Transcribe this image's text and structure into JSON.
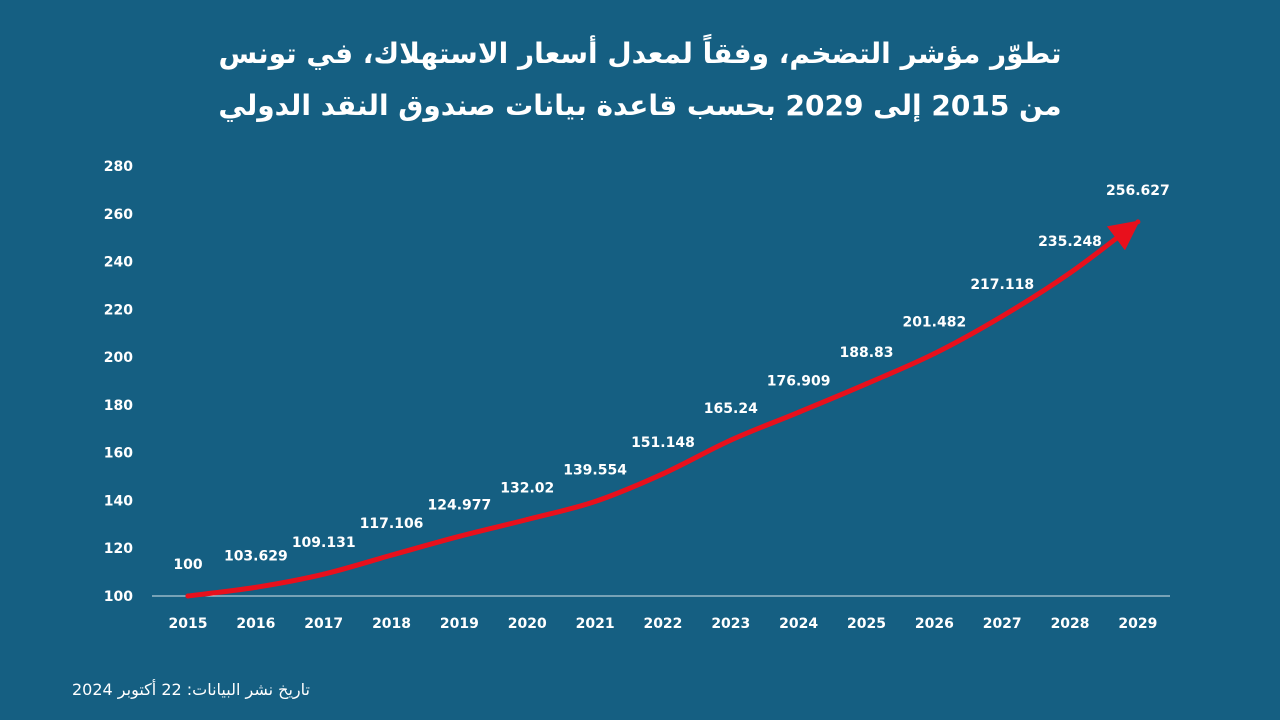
{
  "title": {
    "line1": "تطوّر مؤشر التضخم، وفقاً لمعدل أسعار الاستهلاك، في تونس",
    "line2": "من 2015 إلى 2029 بحسب قاعدة بيانات صندوق النقد الدولي"
  },
  "footer": "تاريخ نشر البيانات: 22 أكتوبر 2024",
  "colors": {
    "background": "#155f82",
    "line": "#e8101c",
    "text": "#ffffff"
  },
  "chart_data": {
    "type": "line",
    "x": [
      "2015",
      "2016",
      "2017",
      "2018",
      "2019",
      "2020",
      "2021",
      "2022",
      "2023",
      "2024",
      "2025",
      "2026",
      "2027",
      "2028",
      "2029"
    ],
    "values": [
      100,
      103.629,
      109.131,
      117.106,
      124.977,
      132.02,
      139.554,
      151.148,
      165.24,
      176.909,
      188.83,
      201.482,
      217.118,
      235.248,
      256.627
    ],
    "labels": [
      "100",
      "103.629",
      "109.131",
      "117.106",
      "124.977",
      "132.02",
      "139.554",
      "151.148",
      "165.24",
      "176.909",
      "188.83",
      "201.482",
      "217.118",
      "235.248",
      "256.627"
    ],
    "yticks": [
      100,
      120,
      140,
      160,
      180,
      200,
      220,
      240,
      260,
      280
    ],
    "ylim": [
      100,
      280
    ],
    "grid": false,
    "arrow_at_end": true
  }
}
